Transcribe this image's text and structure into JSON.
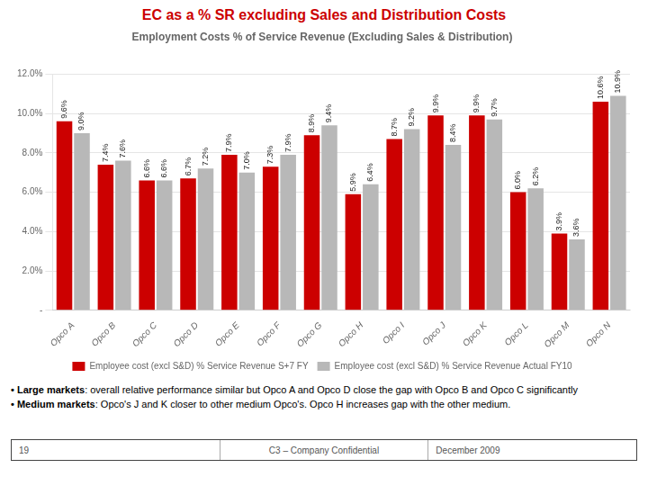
{
  "chart_data": {
    "type": "bar",
    "title": "EC as a %  SR excluding Sales and Distribution Costs",
    "subtitle": "Employment Costs % of Service Revenue (Excluding Sales & Distribution)",
    "categories": [
      "Opco A",
      "Opco B",
      "Opco C",
      "Opco D",
      "Opco E",
      "Opco F",
      "Opco G",
      "Opco H",
      "Opco I",
      "Opco J",
      "Opco K",
      "Opco L",
      "Opco M",
      "Opco N"
    ],
    "series": [
      {
        "name": "Employee cost (excl S&D) % Service Revenue S+7 FY",
        "color": "#CC0000",
        "values": [
          9.6,
          7.4,
          6.6,
          6.7,
          7.9,
          7.3,
          8.9,
          5.9,
          8.7,
          9.9,
          9.9,
          6.0,
          3.9,
          10.6
        ],
        "value_labels": [
          "9.6%",
          "7.4%",
          "6.6%",
          "6.7%",
          "7.9%",
          "7.3%",
          "8.9%",
          "5.9%",
          "8.7%",
          "9.9%",
          "9.9%",
          "6.0%",
          "3.9%",
          "10.6%"
        ]
      },
      {
        "name": "Employee cost (excl S&D) % Service Revenue Actual FY10",
        "color": "#B8B8B8",
        "values": [
          9.0,
          7.6,
          6.6,
          7.2,
          7.0,
          7.9,
          9.4,
          6.4,
          9.2,
          8.4,
          9.7,
          6.2,
          3.6,
          10.9
        ],
        "value_labels": [
          "9.0%",
          "7.6%",
          "6.6%",
          "7.2%",
          "7.0%",
          "7.9%",
          "9.4%",
          "6.4%",
          "9.2%",
          "8.4%",
          "9.7%",
          "6.2%",
          "3.6%",
          "10.9%"
        ]
      }
    ],
    "ylim": [
      0,
      12.0
    ],
    "yticks": [
      {
        "value": 0,
        "label": "-"
      },
      {
        "value": 2.0,
        "label": "2.0%"
      },
      {
        "value": 4.0,
        "label": "4.0%"
      },
      {
        "value": 6.0,
        "label": "6.0%"
      },
      {
        "value": 8.0,
        "label": "8.0%"
      },
      {
        "value": 10.0,
        "label": "10.0%"
      },
      {
        "value": 12.0,
        "label": "12.0%"
      }
    ],
    "grid": true,
    "legend": "bottom",
    "data_labels": true,
    "annotations": [
      {
        "bold": "• Large markets",
        "text": ": overall relative performance similar but Opco A and Opco D close the gap with Opco B and Opco C significantly"
      },
      {
        "bold": "• Medium markets",
        "text": ": Opco's J and K closer to other medium Opco's. Opco H increases gap with the other medium."
      }
    ],
    "footer_cells": [
      "19",
      "C3 – Company Confidential",
      "December 2009"
    ]
  }
}
